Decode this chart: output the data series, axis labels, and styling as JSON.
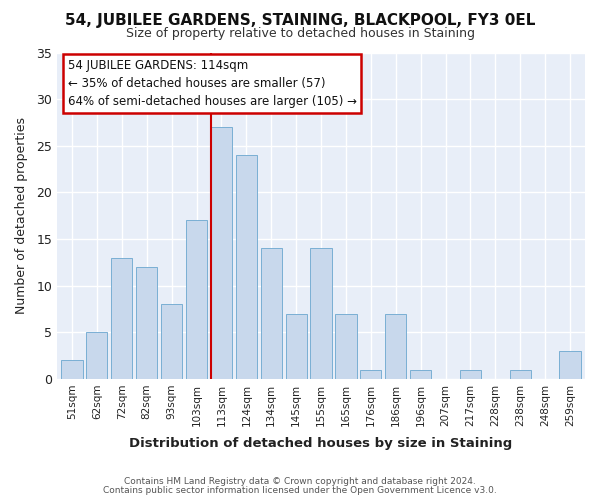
{
  "title1": "54, JUBILEE GARDENS, STAINING, BLACKPOOL, FY3 0EL",
  "title2": "Size of property relative to detached houses in Staining",
  "xlabel": "Distribution of detached houses by size in Staining",
  "ylabel": "Number of detached properties",
  "bar_labels": [
    "51sqm",
    "62sqm",
    "72sqm",
    "82sqm",
    "93sqm",
    "103sqm",
    "113sqm",
    "124sqm",
    "134sqm",
    "145sqm",
    "155sqm",
    "165sqm",
    "176sqm",
    "186sqm",
    "196sqm",
    "207sqm",
    "217sqm",
    "228sqm",
    "238sqm",
    "248sqm",
    "259sqm"
  ],
  "bar_values": [
    2,
    5,
    13,
    12,
    8,
    17,
    27,
    24,
    14,
    7,
    14,
    7,
    1,
    7,
    1,
    0,
    1,
    0,
    1,
    0,
    3
  ],
  "bar_color": "#c8d8ec",
  "bar_edge_color": "#7aafd4",
  "vline_color": "#cc0000",
  "vline_index": 6,
  "annotation_title": "54 JUBILEE GARDENS: 114sqm",
  "annotation_line1": "← 35% of detached houses are smaller (57)",
  "annotation_line2": "64% of semi-detached houses are larger (105) →",
  "ylim": [
    0,
    35
  ],
  "yticks": [
    0,
    5,
    10,
    15,
    20,
    25,
    30,
    35
  ],
  "figure_bg": "#ffffff",
  "axes_bg": "#e8eef8",
  "grid_color": "#ffffff",
  "title1_fontsize": 11,
  "title2_fontsize": 9,
  "footer1": "Contains HM Land Registry data © Crown copyright and database right 2024.",
  "footer2": "Contains public sector information licensed under the Open Government Licence v3.0."
}
